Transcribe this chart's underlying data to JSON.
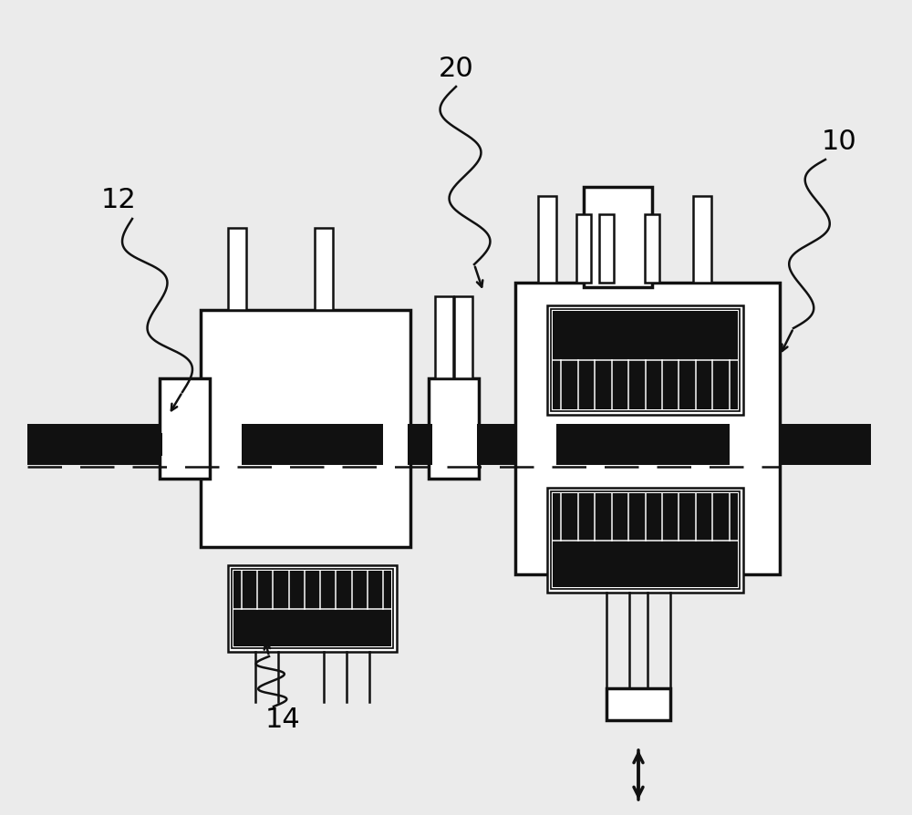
{
  "bg_color": "#ebebeb",
  "line_color": "#111111",
  "dark_fill": "#111111",
  "label_10": "10",
  "label_12": "12",
  "label_14": "14",
  "label_20": "20",
  "figsize": [
    10.0,
    8.94
  ],
  "dpi": 100
}
